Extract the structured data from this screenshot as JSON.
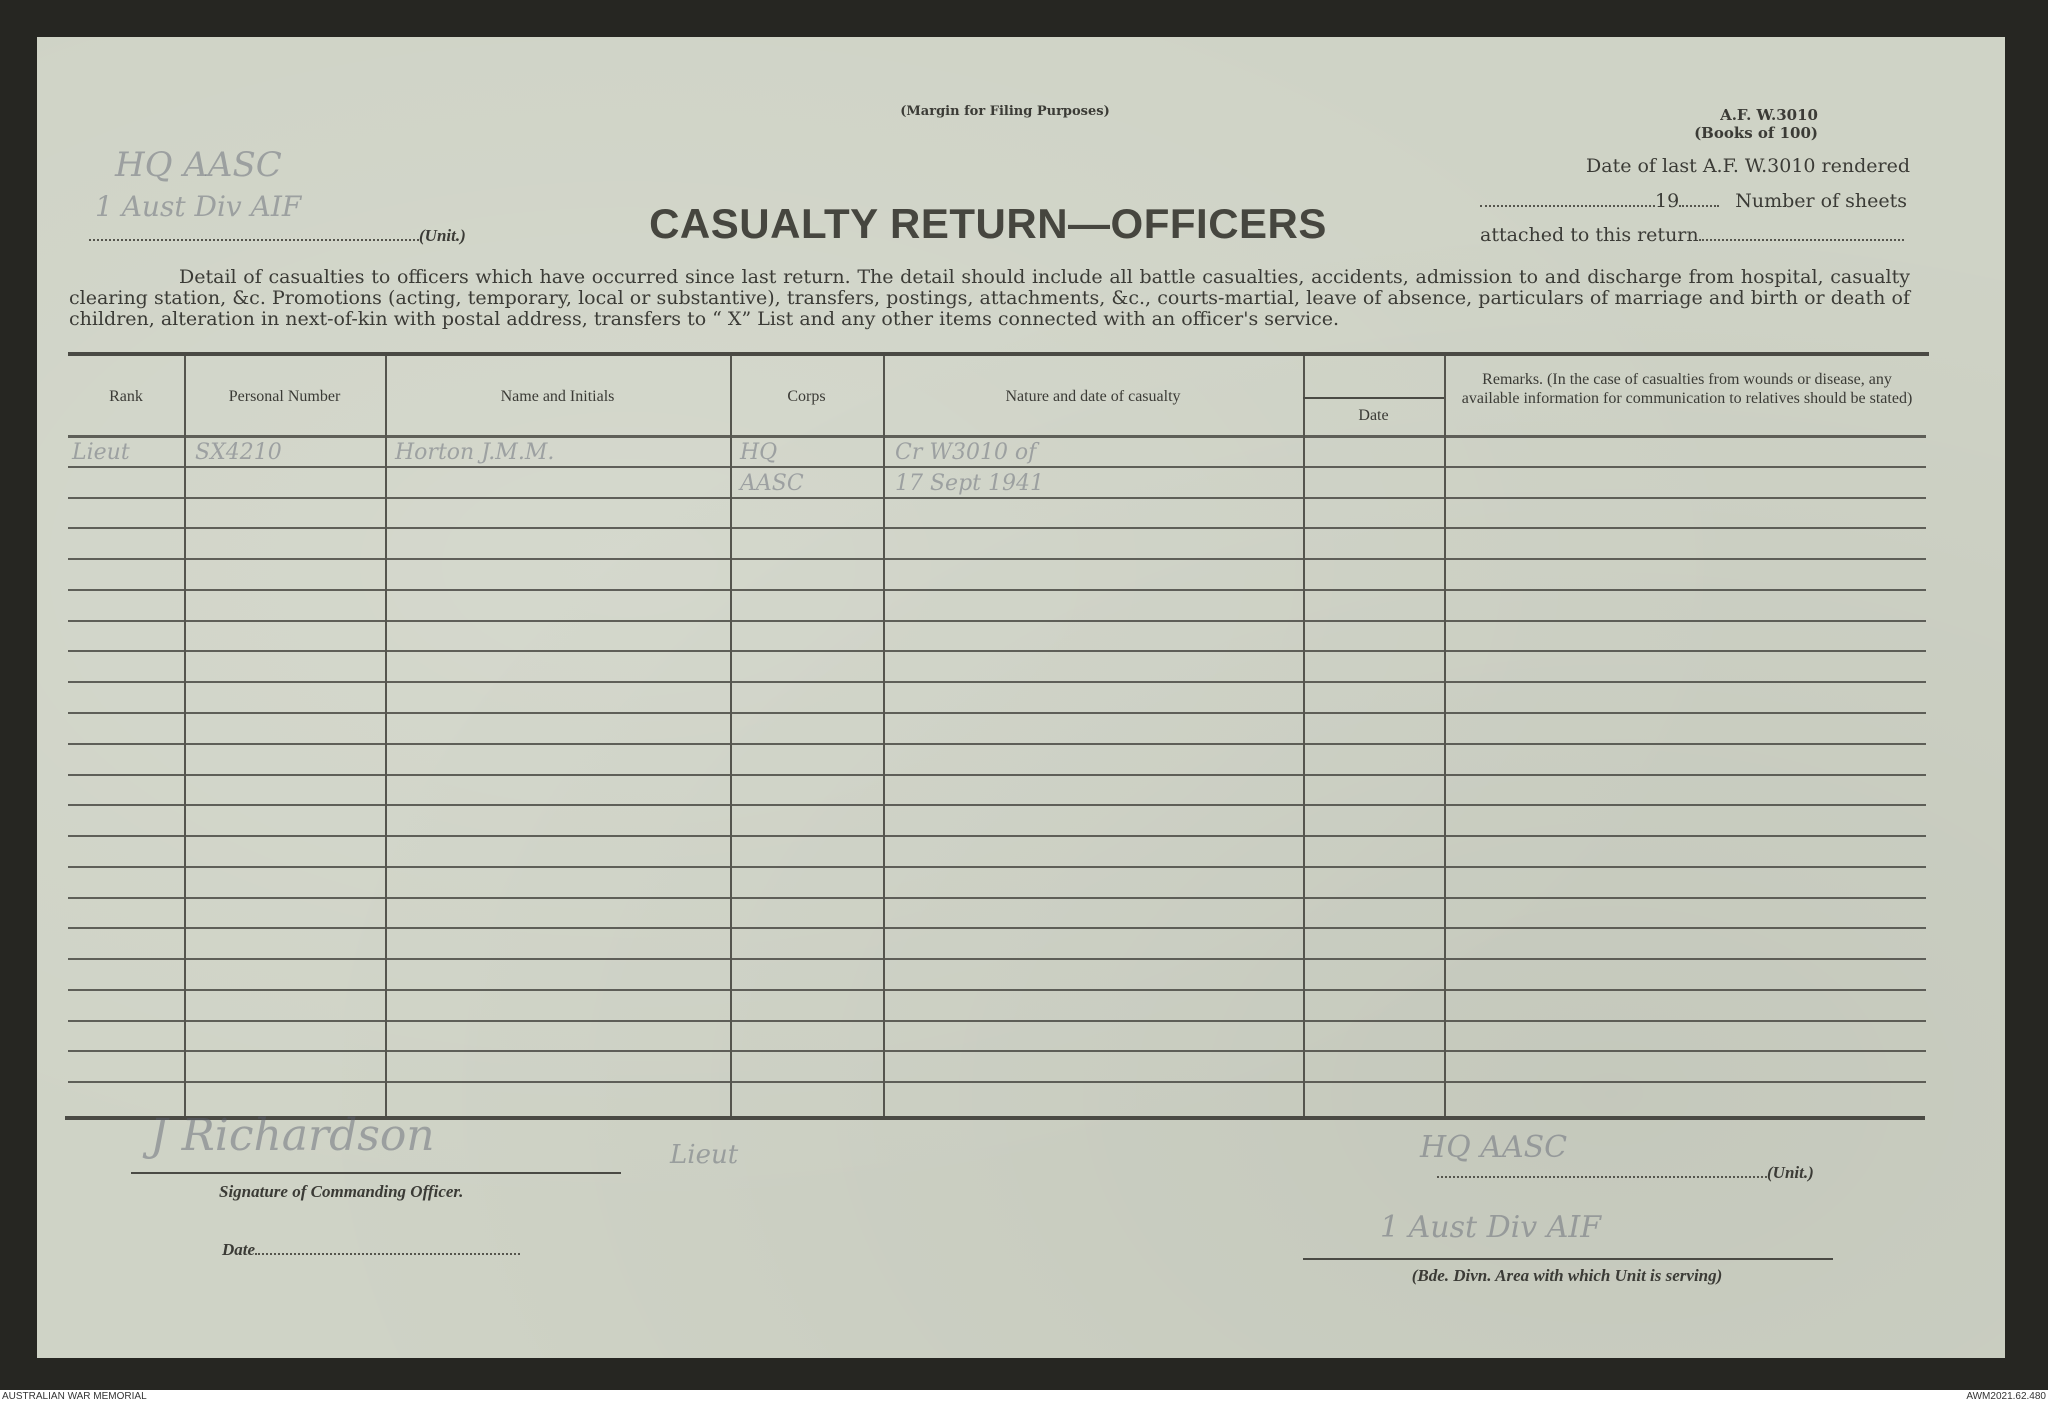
{
  "form": {
    "margin_note": "(Margin for Filing Purposes)",
    "form_number": "A.F. W.3010",
    "books_note": "(Books of 100)",
    "date_last_label": "Date of last A.F. W.3010 rendered",
    "year_prefix": "19",
    "sheets_label": "Number of sheets",
    "attached_label": "attached to this return",
    "unit_label": "(Unit.)",
    "title": "CASUALTY RETURN—OFFICERS",
    "instructions": "Detail of casualties to officers which have occurred since last return. The detail should include all battle casualties, accidents, admission to and discharge from hospital, casualty clearing station, &c. Promotions (acting, temporary, local or substantive), transfers, postings, attachments, &c., courts-martial, leave of absence, particulars of marriage and birth or death of children, alteration in next-of-kin with postal address, transfers to “ X” List and any other items connected with an officer's service."
  },
  "table": {
    "columns": [
      "Rank",
      "Personal Number",
      "Name and Initials",
      "Corps",
      "Nature and date of casualty",
      "Date",
      "Remarks. (In the case of casualties from wounds or disease, any available information for communication to relatives should be stated)"
    ],
    "handwritten_rows": [
      {
        "rank": "Lieut",
        "number": "SX4210",
        "name": "Horton J.M.M.",
        "corps": "HQ",
        "nature": "Cr W3010 of"
      },
      {
        "rank": "",
        "number": "",
        "name": "",
        "corps": "AASC",
        "nature": "17 Sept 1941"
      }
    ]
  },
  "footer_form": {
    "signature_label": "Signature of Commanding Officer.",
    "date_label": "Date",
    "unit_label": "(Unit.)",
    "bde_label": "(Bde. Divn. Area with which Unit is serving)"
  },
  "handwriting": {
    "top_unit_1": "HQ AASC",
    "top_unit_2": "1 Aust Div AIF",
    "signature": "J Richardson",
    "signature_rank": "Lieut",
    "bottom_unit_1": "HQ AASC",
    "bottom_unit_2": "1 Aust Div AIF"
  },
  "credits": {
    "left": "AUSTRALIAN WAR MEMORIAL",
    "right": "AWM2021.62.480"
  },
  "colors": {
    "paper": "#cfd3c6",
    "ink": "#3b3b36",
    "frame": "#262622"
  }
}
